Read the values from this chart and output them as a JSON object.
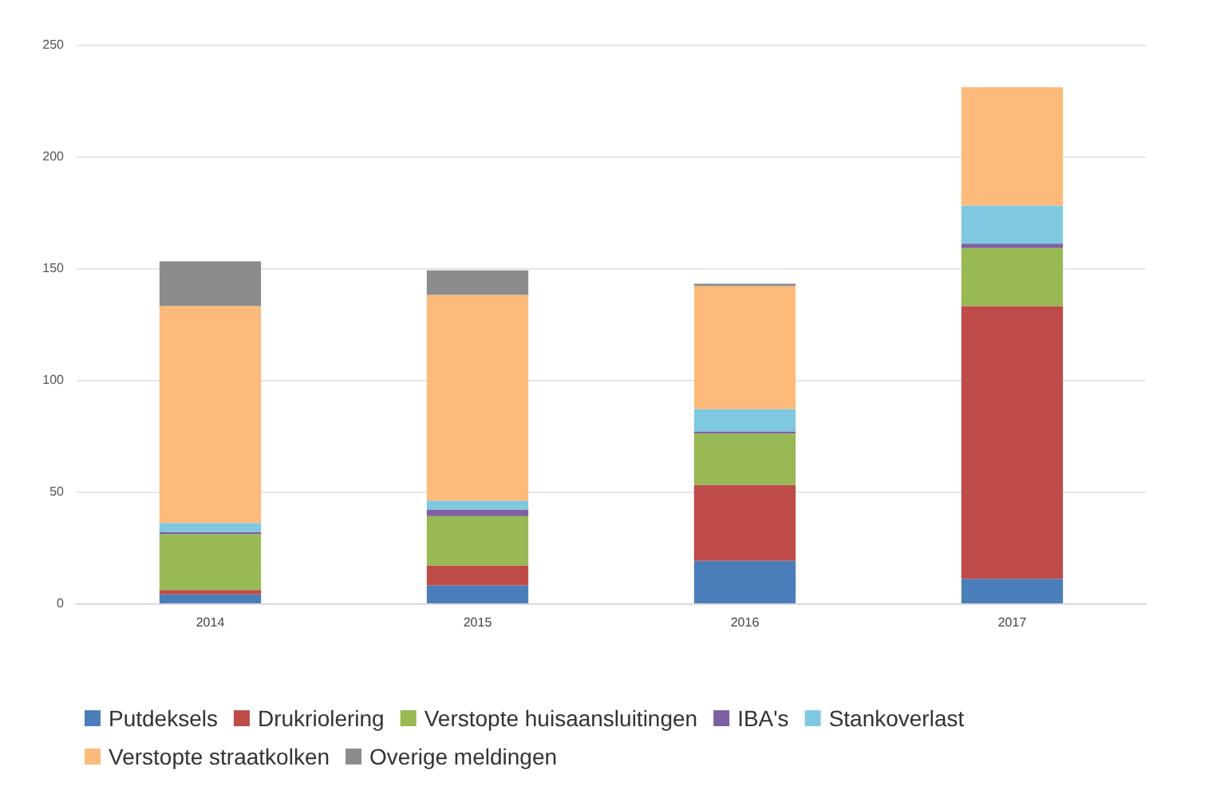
{
  "chart_data": {
    "type": "bar",
    "stacked": true,
    "categories": [
      "2014",
      "2015",
      "2016",
      "2017"
    ],
    "series": [
      {
        "name": "Putdeksels",
        "color": "#4a7ebb",
        "values": [
          4,
          8,
          19,
          11
        ]
      },
      {
        "name": "Drukriolering",
        "color": "#be4b48",
        "values": [
          2,
          9,
          34,
          122
        ]
      },
      {
        "name": "Verstopte huisaansluitingen",
        "color": "#98b954",
        "values": [
          25,
          22,
          23,
          26
        ]
      },
      {
        "name": "IBA's",
        "color": "#7d60a0",
        "values": [
          1,
          3,
          1,
          2
        ]
      },
      {
        "name": "Stankoverlast",
        "color": "#7ec9e0",
        "values": [
          4,
          4,
          10,
          17
        ]
      },
      {
        "name": "Verstopte straatkolken",
        "color": "#fdba7a",
        "values": [
          97,
          92,
          55,
          53
        ]
      },
      {
        "name": "Overige meldingen",
        "color": "#8c8c8c",
        "values": [
          20,
          11,
          1,
          0
        ]
      }
    ],
    "ylim": [
      0,
      250
    ],
    "yticks": [
      0,
      50,
      100,
      150,
      200,
      250
    ],
    "grid": "y",
    "legend": "bottom"
  }
}
